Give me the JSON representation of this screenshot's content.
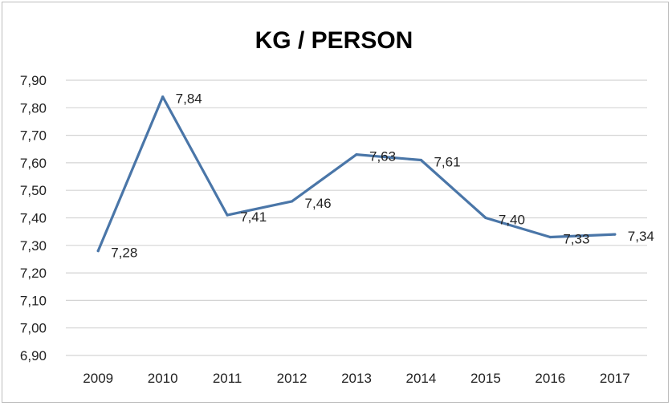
{
  "chart_data": {
    "type": "line",
    "title": "KG / PERSON",
    "xlabel": "",
    "ylabel": "",
    "categories": [
      "2009",
      "2010",
      "2011",
      "2012",
      "2013",
      "2014",
      "2015",
      "2016",
      "2017"
    ],
    "values": [
      7.28,
      7.84,
      7.41,
      7.46,
      7.63,
      7.61,
      7.4,
      7.33,
      7.34
    ],
    "data_labels": [
      "7,28",
      "7,84",
      "7,41",
      "7,46",
      "7,63",
      "7,61",
      "7,40",
      "7,33",
      "7,34"
    ],
    "y_ticks": [
      "6,90",
      "7,00",
      "7,10",
      "7,20",
      "7,30",
      "7,40",
      "7,50",
      "7,60",
      "7,70",
      "7,80",
      "7,90"
    ],
    "ylim": [
      6.9,
      7.9
    ],
    "grid": true,
    "legend": "none",
    "line_color": "#4a76a8"
  }
}
